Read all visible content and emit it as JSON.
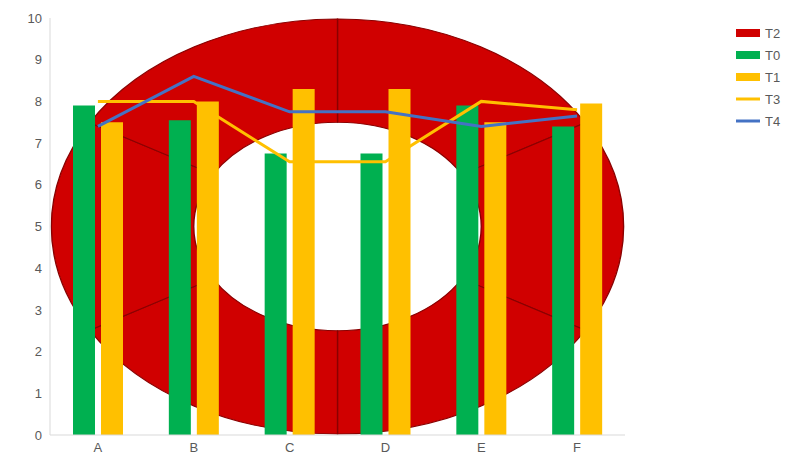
{
  "chart_data": {
    "type": "bar",
    "categories": [
      "A",
      "B",
      "C",
      "D",
      "E",
      "F"
    ],
    "series": [
      {
        "name": "T2",
        "type": "pie",
        "color": "#d00000",
        "values": [
          8,
          8,
          8,
          8,
          8,
          8
        ]
      },
      {
        "name": "T0",
        "type": "bar",
        "color": "#00b050",
        "values": [
          7.9,
          7.55,
          6.75,
          6.75,
          7.9,
          7.4
        ]
      },
      {
        "name": "T1",
        "type": "bar",
        "color": "#ffc000",
        "values": [
          7.5,
          8.0,
          8.3,
          8.3,
          7.5,
          7.95
        ]
      },
      {
        "name": "T3",
        "type": "line",
        "color": "#ffc000",
        "values": [
          8.0,
          8.0,
          6.55,
          6.55,
          8.0,
          7.8
        ]
      },
      {
        "name": "T4",
        "type": "line",
        "color": "#4472c4",
        "values": [
          7.4,
          8.6,
          7.75,
          7.75,
          7.4,
          7.65
        ]
      }
    ],
    "ylim": [
      0,
      10
    ],
    "yticks": [
      0,
      1,
      2,
      3,
      4,
      5,
      6,
      7,
      8,
      9,
      10
    ],
    "grid": false,
    "legend": "right"
  }
}
